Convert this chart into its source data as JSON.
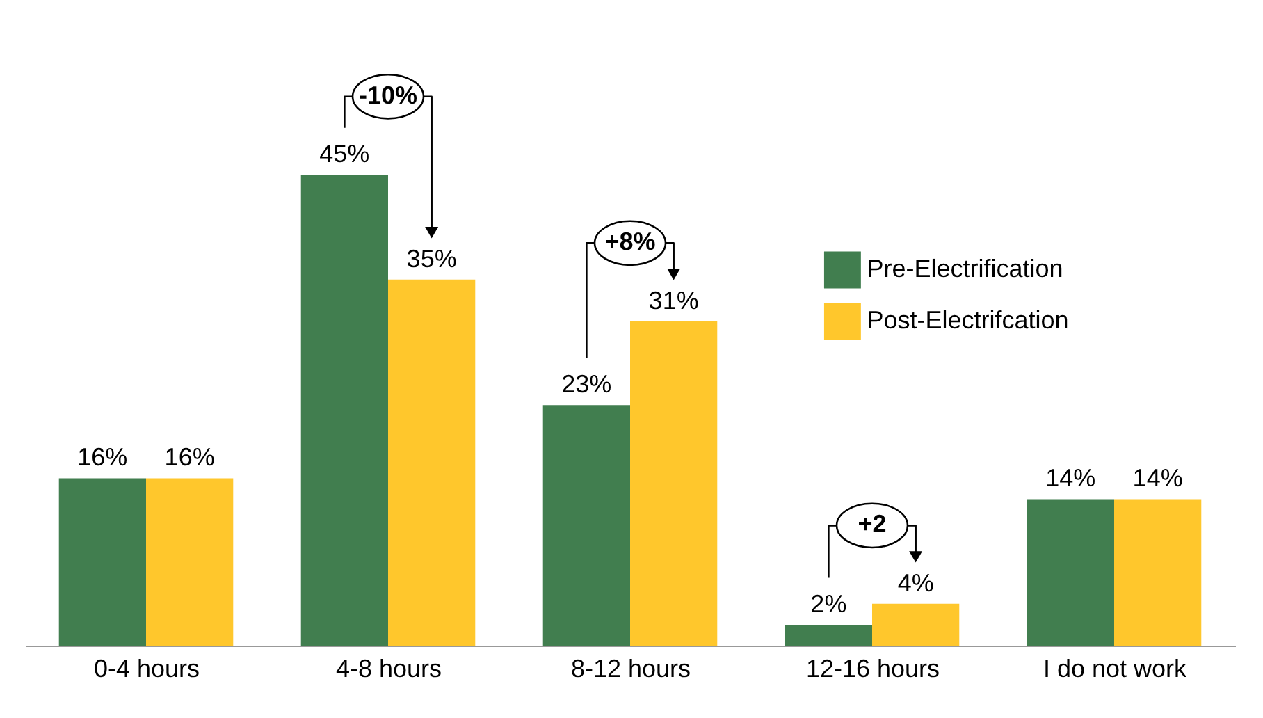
{
  "chart_data": {
    "type": "bar",
    "categories": [
      "0-4 hours",
      "4-8 hours",
      "8-12 hours",
      "12-16 hours",
      "I do not work"
    ],
    "series": [
      {
        "name": "Pre-Electrification",
        "color": "#417e4f",
        "values": [
          16,
          45,
          23,
          2,
          14
        ],
        "value_labels": [
          "16%",
          "45%",
          "23%",
          "2%",
          "14%"
        ]
      },
      {
        "name": "Post-Electrifcation",
        "color": "#ffc72c",
        "values": [
          16,
          35,
          31,
          4,
          14
        ],
        "value_labels": [
          "16%",
          "35%",
          "31%",
          "4%",
          "14%"
        ]
      }
    ],
    "annotations": [
      "-10%",
      "+8%",
      "+2"
    ],
    "legend": "right"
  }
}
